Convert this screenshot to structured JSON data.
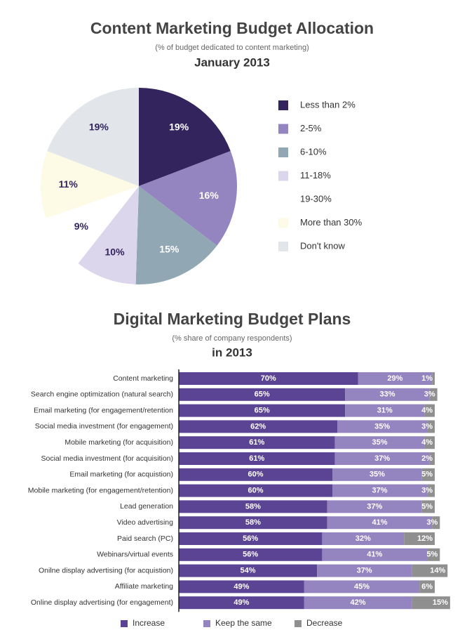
{
  "chart_data": [
    {
      "type": "pie",
      "title": "Content Marketing Budget Allocation",
      "subtitle": "(% of budget dedicated to content marketing)",
      "period": "January 2013",
      "categories": [
        "Less than 2%",
        "2-5%",
        "6-10%",
        "11-18%",
        "19-30%",
        "More than 30%",
        "Don't know"
      ],
      "values": [
        19,
        16,
        15,
        10,
        9,
        11,
        19
      ],
      "value_labels": [
        "19%",
        "16%",
        "15%",
        "10%",
        "9%",
        "11%",
        "19%"
      ],
      "colors": [
        "#33245e",
        "#9484bf",
        "#91a8b4",
        "#dcd6ec",
        "#ffffff",
        "#fdfbe6",
        "#e2e6ea"
      ]
    },
    {
      "type": "stacked-bar",
      "title": "Digital Marketing Budget Plans",
      "subtitle": "(% share of company respondents)",
      "period": "in 2013",
      "categories": [
        "Content marketing",
        "Search engine optimization (natural search)",
        "Email marketing (for engagement/retention",
        "Social media investment (for engagement)",
        "Mobile marketing (for acquisition)",
        "Social media investment (for acquisition)",
        "Email marketing (for acquistion)",
        "Mobile marketing (for engagement/retention)",
        "Lead generation",
        "Video advertising",
        "Paid search (PC)",
        "Webinars/virtual events",
        "Onilne display advertising (for acquistion)",
        "Affiliate marketing",
        "Online display advertising (for engagement)"
      ],
      "series": [
        {
          "name": "Increase",
          "color": "#5c4494",
          "values": [
            70,
            65,
            65,
            62,
            61,
            61,
            60,
            60,
            58,
            58,
            56,
            56,
            54,
            49,
            49
          ],
          "value_labels": [
            "70%",
            "65%",
            "65%",
            "62%",
            "61%",
            "61%",
            "60%",
            "60%",
            "58%",
            "58%",
            "56%",
            "56%",
            "54%",
            "49%",
            "49%"
          ]
        },
        {
          "name": "Keep the same",
          "color": "#9484bf",
          "values": [
            29,
            33,
            31,
            35,
            35,
            37,
            35,
            37,
            37,
            41,
            32,
            41,
            37,
            45,
            42
          ],
          "value_labels": [
            "29%",
            "33%",
            "31%",
            "35%",
            "35%",
            "37%",
            "35%",
            "37%",
            "37%",
            "41%",
            "32%",
            "41%",
            "37%",
            "45%",
            "42%"
          ]
        },
        {
          "name": "Decrease",
          "color": "#8f8f8f",
          "values": [
            1,
            3,
            4,
            3,
            4,
            2,
            5,
            3,
            5,
            3,
            12,
            5,
            14,
            6,
            15
          ],
          "value_labels": [
            "1%",
            "3%",
            "4%",
            "3%",
            "4%",
            "2%",
            "5%",
            "3%",
            "5%",
            "3%",
            "12%",
            "5%",
            "14%",
            "6%",
            "15%"
          ]
        }
      ]
    }
  ]
}
